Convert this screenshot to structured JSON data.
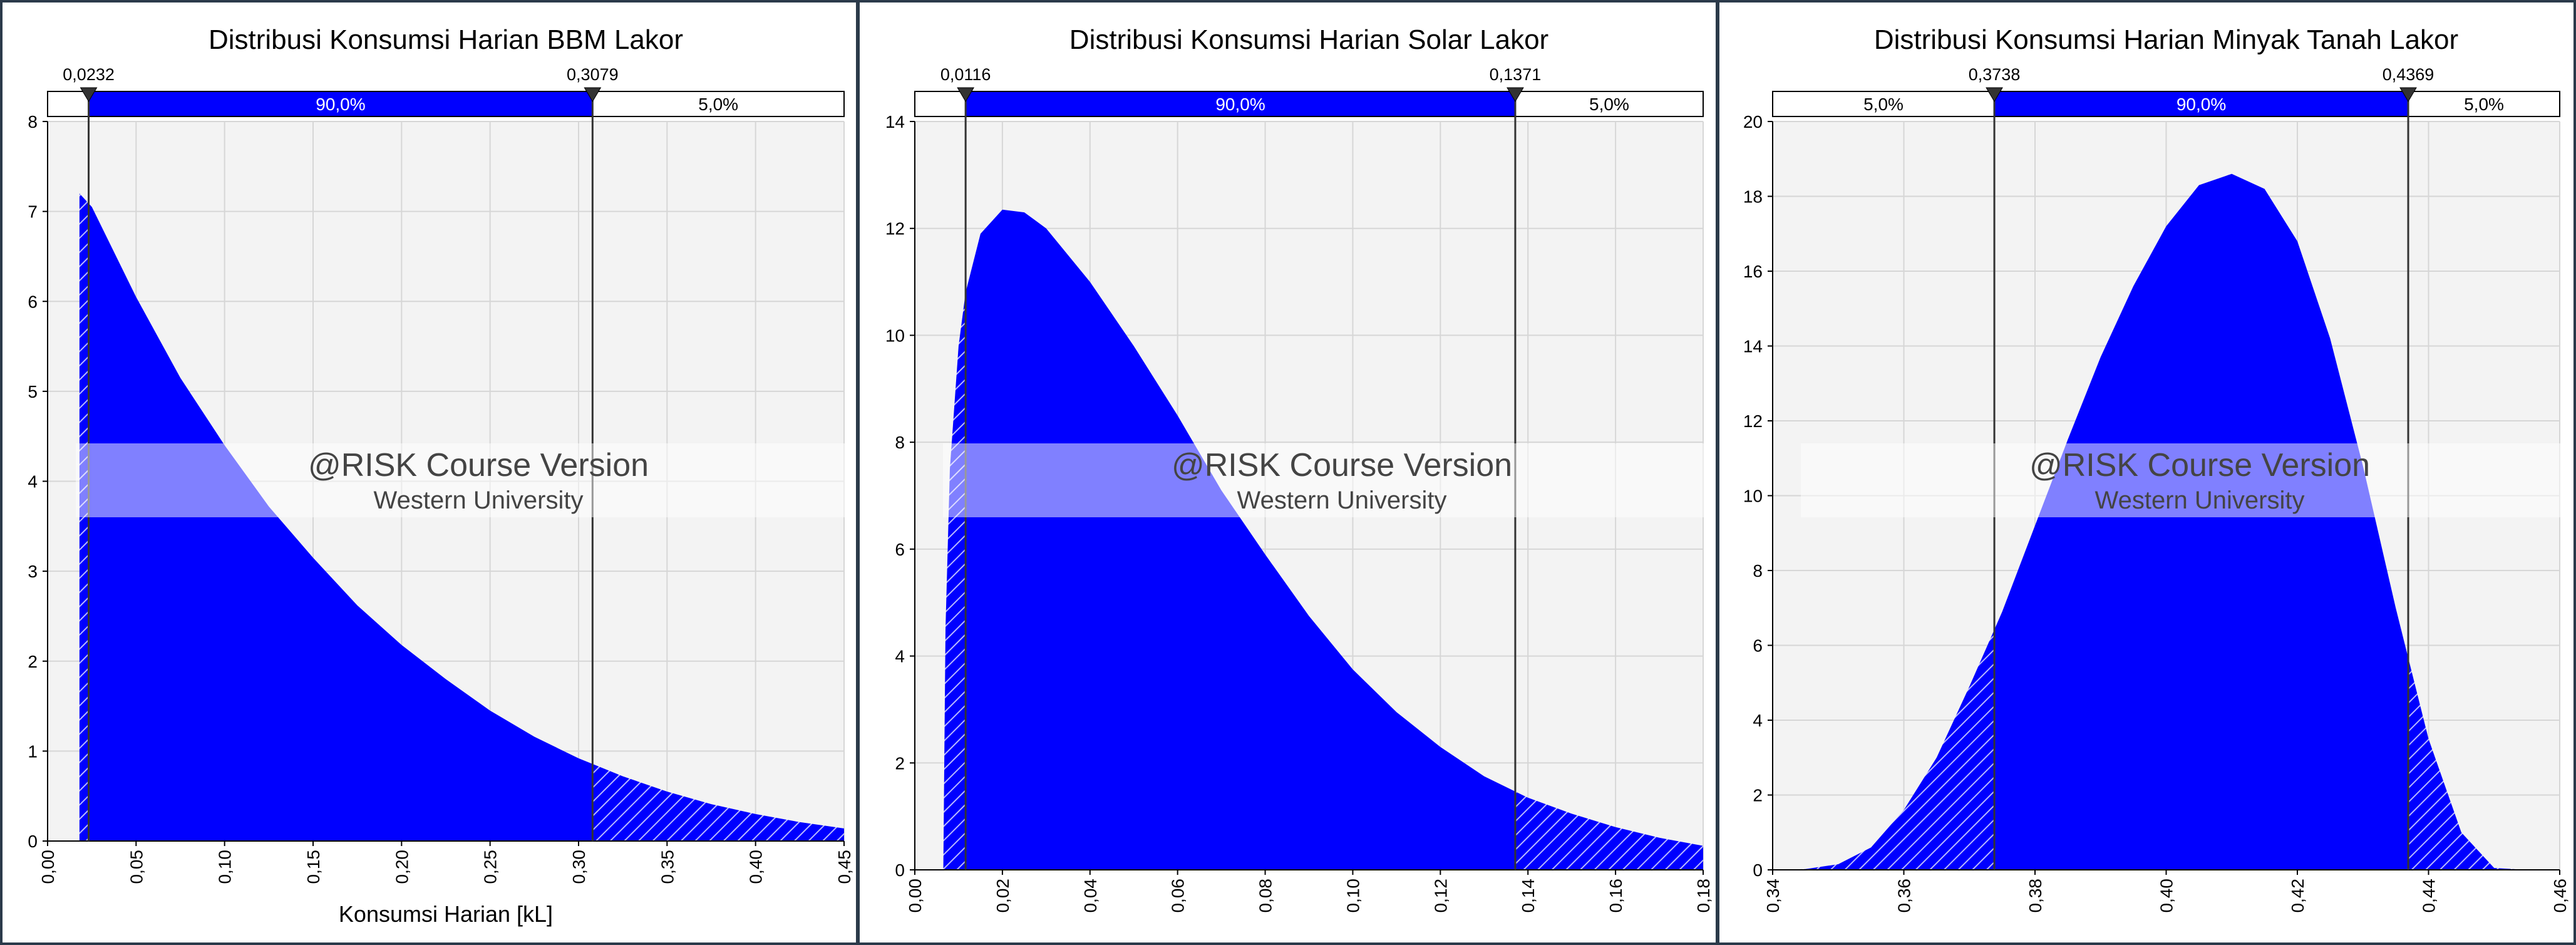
{
  "colors": {
    "fill": "#0000ff",
    "hatch_line": "#b8b8ff",
    "plot_background": "#f3f3f3",
    "grid": "#d6d6d6",
    "marker_line": "#333333",
    "panel_border": "#2b3a4a",
    "watermark_band": "#ffffff"
  },
  "watermark": {
    "line1": "@RISK Course Version",
    "line2": "Western University"
  },
  "chart_data": [
    {
      "type": "area",
      "title": "Distribusi Konsumsi Harian BBM Lakor",
      "xlabel": "Konsumsi Harian [kL]",
      "ylabel": "",
      "xlim": [
        0,
        0.45
      ],
      "ylim": [
        0,
        8
      ],
      "x_ticks": [
        "0,00",
        "0,05",
        "0,10",
        "0,15",
        "0,20",
        "0,25",
        "0,30",
        "0,35",
        "0,40",
        "0,45"
      ],
      "y_ticks": [
        "0",
        "1",
        "2",
        "3",
        "4",
        "5",
        "6",
        "7",
        "8"
      ],
      "grid": true,
      "markers": {
        "left": "0,0232",
        "right": "0,3079"
      },
      "marker_values": [
        0.0232,
        0.3079
      ],
      "bands": [
        "",
        "90,0%",
        "5,0%"
      ],
      "band_shown": [
        false,
        true,
        true
      ],
      "series": [
        {
          "x": [
            0.018,
            0.025,
            0.05,
            0.075,
            0.1,
            0.125,
            0.15,
            0.175,
            0.2,
            0.225,
            0.25,
            0.275,
            0.3,
            0.325,
            0.35,
            0.375,
            0.4,
            0.425,
            0.45
          ],
          "y": [
            7.2,
            7.05,
            6.05,
            5.15,
            4.4,
            3.72,
            3.15,
            2.62,
            2.18,
            1.8,
            1.45,
            1.16,
            0.92,
            0.72,
            0.55,
            0.41,
            0.3,
            0.21,
            0.14
          ]
        }
      ]
    },
    {
      "type": "area",
      "title": "Distribusi Konsumsi Harian Solar Lakor",
      "xlabel": "",
      "ylabel": "",
      "xlim": [
        0,
        0.18
      ],
      "ylim": [
        0,
        14
      ],
      "x_ticks": [
        "0,00",
        "0,02",
        "0,04",
        "0,06",
        "0,08",
        "0,10",
        "0,12",
        "0,14",
        "0,16",
        "0,18"
      ],
      "y_ticks": [
        "0",
        "2",
        "4",
        "6",
        "8",
        "10",
        "12",
        "14"
      ],
      "grid": true,
      "markers": {
        "left": "0,0116",
        "right": "0,1371"
      },
      "marker_values": [
        0.0116,
        0.1371
      ],
      "bands": [
        "",
        "90,0%",
        "5,0%"
      ],
      "band_shown": [
        false,
        true,
        true
      ],
      "series": [
        {
          "x": [
            0.0065,
            0.007,
            0.008,
            0.01,
            0.0116,
            0.015,
            0.02,
            0.025,
            0.03,
            0.04,
            0.05,
            0.06,
            0.07,
            0.08,
            0.09,
            0.1,
            0.11,
            0.12,
            0.13,
            0.14,
            0.15,
            0.16,
            0.17,
            0.18
          ],
          "y": [
            0,
            4.5,
            7.5,
            9.8,
            10.8,
            11.9,
            12.35,
            12.3,
            12.0,
            11.0,
            9.8,
            8.5,
            7.1,
            5.9,
            4.75,
            3.75,
            2.95,
            2.3,
            1.75,
            1.35,
            1.05,
            0.8,
            0.6,
            0.45
          ]
        }
      ]
    },
    {
      "type": "area",
      "title": "Distribusi Konsumsi Harian Minyak Tanah Lakor",
      "xlabel": "",
      "ylabel": "",
      "xlim": [
        0.34,
        0.46
      ],
      "ylim": [
        0,
        20
      ],
      "x_ticks": [
        "0,34",
        "0,36",
        "0,38",
        "0,40",
        "0,42",
        "0,44",
        "0,46"
      ],
      "y_ticks": [
        "0",
        "2",
        "4",
        "6",
        "8",
        "10",
        "12",
        "14",
        "16",
        "18",
        "20"
      ],
      "grid": true,
      "markers": {
        "left": "0,3738",
        "right": "0,4369"
      },
      "marker_values": [
        0.3738,
        0.4369
      ],
      "bands": [
        "5,0%",
        "90,0%",
        "5,0%"
      ],
      "band_shown": [
        true,
        true,
        true
      ],
      "series": [
        {
          "x": [
            0.34,
            0.345,
            0.35,
            0.355,
            0.36,
            0.365,
            0.37,
            0.375,
            0.38,
            0.385,
            0.39,
            0.395,
            0.4,
            0.405,
            0.41,
            0.415,
            0.42,
            0.425,
            0.43,
            0.435,
            0.44,
            0.445,
            0.45,
            0.455,
            0.46
          ],
          "y": [
            0,
            0.02,
            0.15,
            0.6,
            1.6,
            3.0,
            4.9,
            6.9,
            9.2,
            11.5,
            13.7,
            15.6,
            17.2,
            18.3,
            18.6,
            18.2,
            16.8,
            14.2,
            10.8,
            7.0,
            3.5,
            1.0,
            0.05,
            0,
            0
          ]
        }
      ]
    }
  ]
}
